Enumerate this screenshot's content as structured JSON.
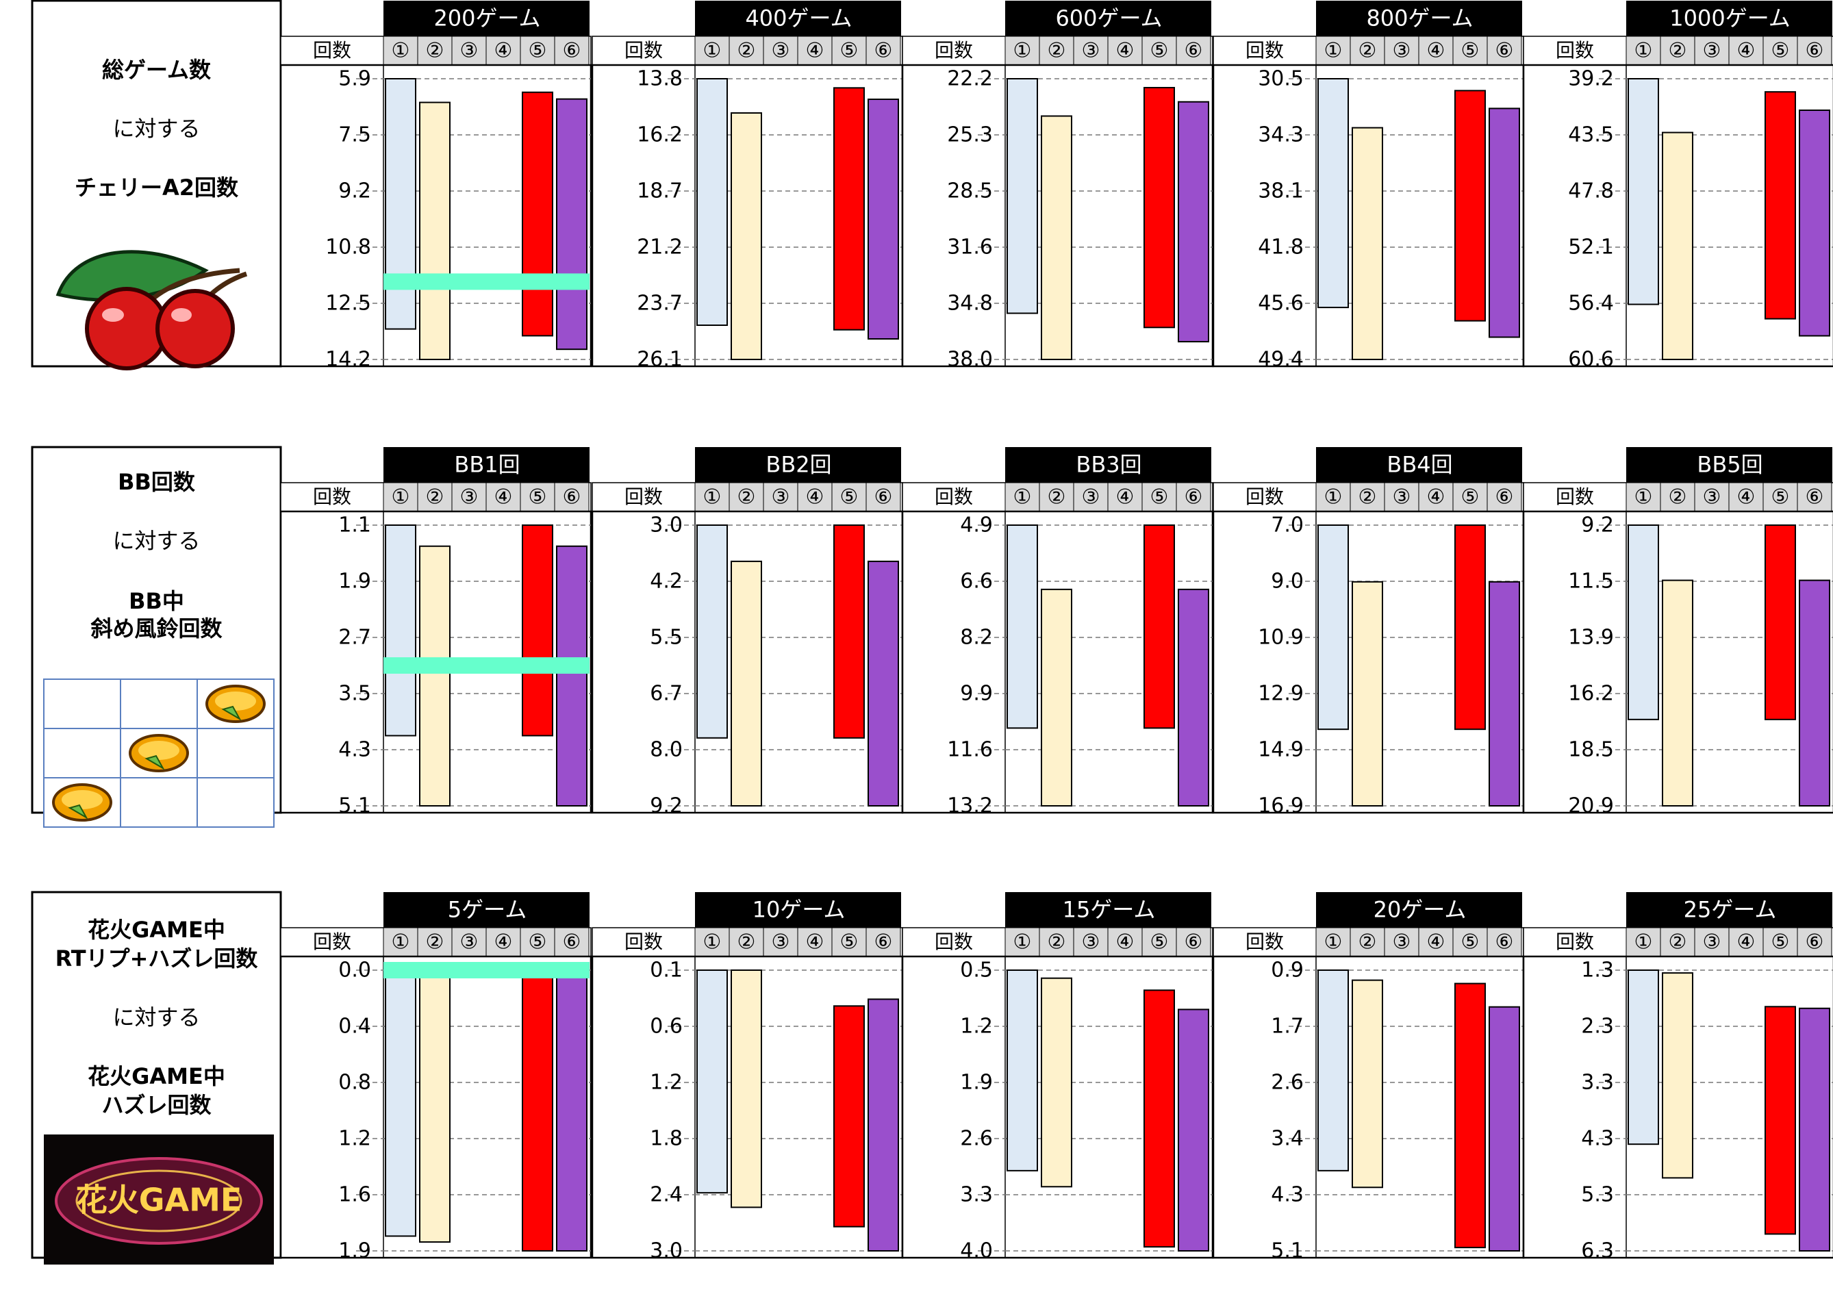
{
  "columns": {
    "count_label": "回数",
    "settings": [
      "①",
      "②",
      "③",
      "④",
      "⑤",
      "⑥"
    ]
  },
  "colors": {
    "s1": "#dde9f5",
    "s2": "#fef2cc",
    "s5": "#ff0000",
    "s6": "#9a4fcc",
    "marker": "#66ffcc",
    "header": "#000000",
    "subheader": "#d9d9d9"
  },
  "chart_data": [
    {
      "type": "bar",
      "row": 1,
      "label_lines": [
        {
          "text": "総ゲーム数",
          "bold": true
        },
        {
          "text": "に対する",
          "bold": false
        },
        {
          "text": "チェリーA2回数",
          "bold": true
        }
      ],
      "label_icon": "cherry-icon",
      "marker_value": 11.9,
      "panels": [
        {
          "title": "200ゲーム",
          "ticks": [
            "5.9",
            "7.5",
            "9.2",
            "10.8",
            "12.5",
            "14.2"
          ],
          "ylim": [
            5.9,
            14.2
          ],
          "series": [
            {
              "setting": "①",
              "from": 5.9,
              "to": 13.3
            },
            {
              "setting": "②",
              "from": 6.6,
              "to": 14.2
            },
            {
              "setting": "⑤",
              "from": 6.3,
              "to": 13.5
            },
            {
              "setting": "⑥",
              "from": 6.5,
              "to": 13.9
            }
          ]
        },
        {
          "title": "400ゲーム",
          "ticks": [
            "13.8",
            "16.2",
            "18.7",
            "21.2",
            "23.7",
            "26.1"
          ],
          "ylim": [
            13.8,
            26.1
          ],
          "series": [
            {
              "setting": "①",
              "from": 13.8,
              "to": 24.6
            },
            {
              "setting": "②",
              "from": 15.3,
              "to": 26.1
            },
            {
              "setting": "⑤",
              "from": 14.2,
              "to": 24.8
            },
            {
              "setting": "⑥",
              "from": 14.7,
              "to": 25.2
            }
          ]
        },
        {
          "title": "600ゲーム",
          "ticks": [
            "22.2",
            "25.3",
            "28.5",
            "31.6",
            "34.8",
            "38.0"
          ],
          "ylim": [
            22.2,
            38.0
          ],
          "series": [
            {
              "setting": "①",
              "from": 22.2,
              "to": 35.4
            },
            {
              "setting": "②",
              "from": 24.3,
              "to": 38.0
            },
            {
              "setting": "⑤",
              "from": 22.7,
              "to": 36.2
            },
            {
              "setting": "⑥",
              "from": 23.5,
              "to": 37.0
            }
          ]
        },
        {
          "title": "800ゲーム",
          "ticks": [
            "30.5",
            "34.3",
            "38.1",
            "41.8",
            "45.6",
            "49.4"
          ],
          "ylim": [
            30.5,
            49.4
          ],
          "series": [
            {
              "setting": "①",
              "from": 30.5,
              "to": 45.9
            },
            {
              "setting": "②",
              "from": 33.8,
              "to": 49.4
            },
            {
              "setting": "⑤",
              "from": 31.3,
              "to": 46.8
            },
            {
              "setting": "⑥",
              "from": 32.5,
              "to": 47.9
            }
          ]
        },
        {
          "title": "1000ゲーム",
          "ticks": [
            "39.2",
            "43.5",
            "47.8",
            "52.1",
            "56.4",
            "60.6"
          ],
          "ylim": [
            39.2,
            60.6
          ],
          "series": [
            {
              "setting": "①",
              "from": 39.2,
              "to": 56.4
            },
            {
              "setting": "②",
              "from": 43.3,
              "to": 60.6
            },
            {
              "setting": "⑤",
              "from": 40.2,
              "to": 57.5
            },
            {
              "setting": "⑥",
              "from": 41.6,
              "to": 58.8
            }
          ]
        }
      ]
    },
    {
      "type": "bar",
      "row": 2,
      "label_lines": [
        {
          "text": "BB回数",
          "bold": true
        },
        {
          "text": "に対する",
          "bold": false
        },
        {
          "text": "BB中",
          "bold": true
        },
        {
          "text": "斜め風鈴回数",
          "bold": true
        }
      ],
      "label_icon": "bell-grid-icon",
      "marker_value": 3.1,
      "panels": [
        {
          "title": "BB1回",
          "ticks": [
            "1.1",
            "1.9",
            "2.7",
            "3.5",
            "4.3",
            "5.1"
          ],
          "ylim": [
            1.1,
            5.1
          ],
          "series": [
            {
              "setting": "①",
              "from": 1.1,
              "to": 4.1
            },
            {
              "setting": "②",
              "from": 1.4,
              "to": 5.1
            },
            {
              "setting": "⑤",
              "from": 1.1,
              "to": 4.1
            },
            {
              "setting": "⑥",
              "from": 1.4,
              "to": 5.1
            }
          ]
        },
        {
          "title": "BB2回",
          "ticks": [
            "3.0",
            "4.2",
            "5.5",
            "6.7",
            "8.0",
            "9.2"
          ],
          "ylim": [
            3.0,
            9.2
          ],
          "series": [
            {
              "setting": "①",
              "from": 3.0,
              "to": 7.7
            },
            {
              "setting": "②",
              "from": 3.8,
              "to": 9.2
            },
            {
              "setting": "⑤",
              "from": 3.0,
              "to": 7.7
            },
            {
              "setting": "⑥",
              "from": 3.8,
              "to": 9.2
            }
          ]
        },
        {
          "title": "BB3回",
          "ticks": [
            "4.9",
            "6.6",
            "8.2",
            "9.9",
            "11.6",
            "13.2"
          ],
          "ylim": [
            4.9,
            13.2
          ],
          "series": [
            {
              "setting": "①",
              "from": 4.9,
              "to": 10.9
            },
            {
              "setting": "②",
              "from": 6.8,
              "to": 13.2
            },
            {
              "setting": "⑤",
              "from": 4.9,
              "to": 10.9
            },
            {
              "setting": "⑥",
              "from": 6.8,
              "to": 13.2
            }
          ]
        },
        {
          "title": "BB4回",
          "ticks": [
            "7.0",
            "9.0",
            "10.9",
            "12.9",
            "14.9",
            "16.9"
          ],
          "ylim": [
            7.0,
            16.9
          ],
          "series": [
            {
              "setting": "①",
              "from": 7.0,
              "to": 14.2
            },
            {
              "setting": "②",
              "from": 9.0,
              "to": 16.9
            },
            {
              "setting": "⑤",
              "from": 7.0,
              "to": 14.2
            },
            {
              "setting": "⑥",
              "from": 9.0,
              "to": 16.9
            }
          ]
        },
        {
          "title": "BB5回",
          "ticks": [
            "9.2",
            "11.5",
            "13.9",
            "16.2",
            "18.5",
            "20.9"
          ],
          "ylim": [
            9.2,
            20.9
          ],
          "series": [
            {
              "setting": "①",
              "from": 9.2,
              "to": 17.3
            },
            {
              "setting": "②",
              "from": 11.5,
              "to": 20.9
            },
            {
              "setting": "⑤",
              "from": 9.2,
              "to": 17.3
            },
            {
              "setting": "⑥",
              "from": 11.5,
              "to": 20.9
            }
          ]
        }
      ]
    },
    {
      "type": "bar",
      "row": 3,
      "label_lines": [
        {
          "text": "花火GAME中",
          "bold": true
        },
        {
          "text": "RTリプ+ハズレ回数",
          "bold": true
        },
        {
          "text": "に対する",
          "bold": false
        },
        {
          "text": "花火GAME中",
          "bold": true
        },
        {
          "text": "ハズレ回数",
          "bold": true
        }
      ],
      "label_icon": "hanabi-game-logo",
      "logo_text": "花火GAME",
      "marker_value": 0.0,
      "panels": [
        {
          "title": "5ゲーム",
          "ticks": [
            "0.0",
            "0.4",
            "0.8",
            "1.2",
            "1.6",
            "1.9"
          ],
          "ylim": [
            0.0,
            1.9
          ],
          "series": [
            {
              "setting": "①",
              "from": 0.0,
              "to": 1.8
            },
            {
              "setting": "②",
              "from": 0.0,
              "to": 1.84
            },
            {
              "setting": "⑤",
              "from": 0.0,
              "to": 1.9
            },
            {
              "setting": "⑥",
              "from": 0.0,
              "to": 1.9
            }
          ]
        },
        {
          "title": "10ゲーム",
          "ticks": [
            "0.1",
            "0.6",
            "1.2",
            "1.8",
            "2.4",
            "3.0"
          ],
          "ylim": [
            0.1,
            3.0
          ],
          "series": [
            {
              "setting": "①",
              "from": 0.1,
              "to": 2.4
            },
            {
              "setting": "②",
              "from": 0.1,
              "to": 2.55
            },
            {
              "setting": "⑤",
              "from": 0.47,
              "to": 2.75
            },
            {
              "setting": "⑥",
              "from": 0.4,
              "to": 3.0
            }
          ]
        },
        {
          "title": "15ゲーム",
          "ticks": [
            "0.5",
            "1.2",
            "1.9",
            "2.6",
            "3.3",
            "4.0"
          ],
          "ylim": [
            0.5,
            4.0
          ],
          "series": [
            {
              "setting": "①",
              "from": 0.5,
              "to": 3.0
            },
            {
              "setting": "②",
              "from": 0.6,
              "to": 3.2
            },
            {
              "setting": "⑤",
              "from": 0.75,
              "to": 3.95
            },
            {
              "setting": "⑥",
              "from": 0.99,
              "to": 4.0
            }
          ]
        },
        {
          "title": "20ゲーム",
          "ticks": [
            "0.9",
            "1.7",
            "2.6",
            "3.4",
            "4.3",
            "5.1"
          ],
          "ylim": [
            0.9,
            5.1
          ],
          "series": [
            {
              "setting": "①",
              "from": 0.9,
              "to": 3.9
            },
            {
              "setting": "②",
              "from": 1.05,
              "to": 4.15
            },
            {
              "setting": "⑤",
              "from": 1.1,
              "to": 5.05
            },
            {
              "setting": "⑥",
              "from": 1.45,
              "to": 5.1
            }
          ]
        },
        {
          "title": "25ゲーム",
          "ticks": [
            "1.3",
            "2.3",
            "3.3",
            "4.3",
            "5.3",
            "6.3"
          ],
          "ylim": [
            1.3,
            6.3
          ],
          "series": [
            {
              "setting": "①",
              "from": 1.3,
              "to": 4.4
            },
            {
              "setting": "②",
              "from": 1.35,
              "to": 5.0
            },
            {
              "setting": "⑤",
              "from": 1.95,
              "to": 6.0
            },
            {
              "setting": "⑥",
              "from": 1.98,
              "to": 6.3
            }
          ]
        }
      ]
    }
  ]
}
